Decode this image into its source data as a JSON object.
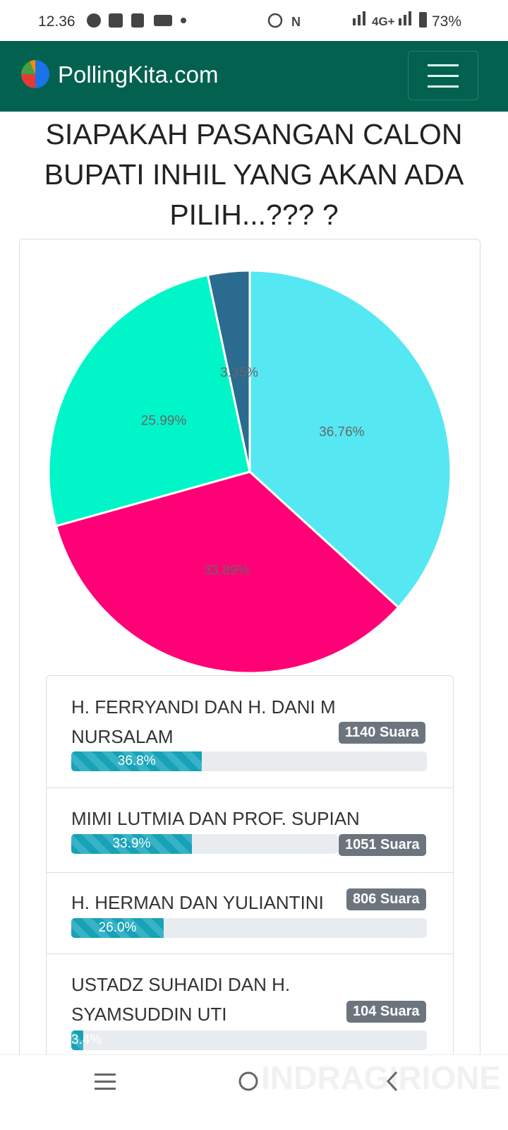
{
  "status_bar": {
    "time": "12.36",
    "network": "4G+",
    "battery": "73%"
  },
  "header": {
    "brand": "PollingKita.com"
  },
  "title": "SIAPAKAH PASANGAN CALON BUPATI INHIL YANG AKAN ADA PILIH...??? ?",
  "chart_data": {
    "type": "pie",
    "values": [
      36.76,
      33.89,
      25.99,
      3.35
    ],
    "value_labels": [
      "36.76%",
      "33.89%",
      "25.99%",
      "3.35%"
    ],
    "colors": [
      "#55e8f2",
      "#ff0077",
      "#00f5c8",
      "#2a6b8f"
    ]
  },
  "results": [
    {
      "name": "H. FERRYANDI DAN H. DANI M NURSALAM",
      "votes": "1140 Suara",
      "percent": 36.8,
      "percent_label": "36.8%"
    },
    {
      "name": "MIMI LUTMIA DAN PROF. SUPIAN",
      "votes": "1051 Suara",
      "percent": 33.9,
      "percent_label": "33.9%"
    },
    {
      "name": "H. HERMAN DAN YULIANTINI",
      "votes": "806 Suara",
      "percent": 26.0,
      "percent_label": "26.0%"
    },
    {
      "name": "USTADZ SUHAIDI DAN H. SYAMSUDDIN UTI",
      "votes": "104 Suara",
      "percent": 3.4,
      "percent_label": "3.4%"
    }
  ],
  "watermark": "INDRAGIRIONE"
}
